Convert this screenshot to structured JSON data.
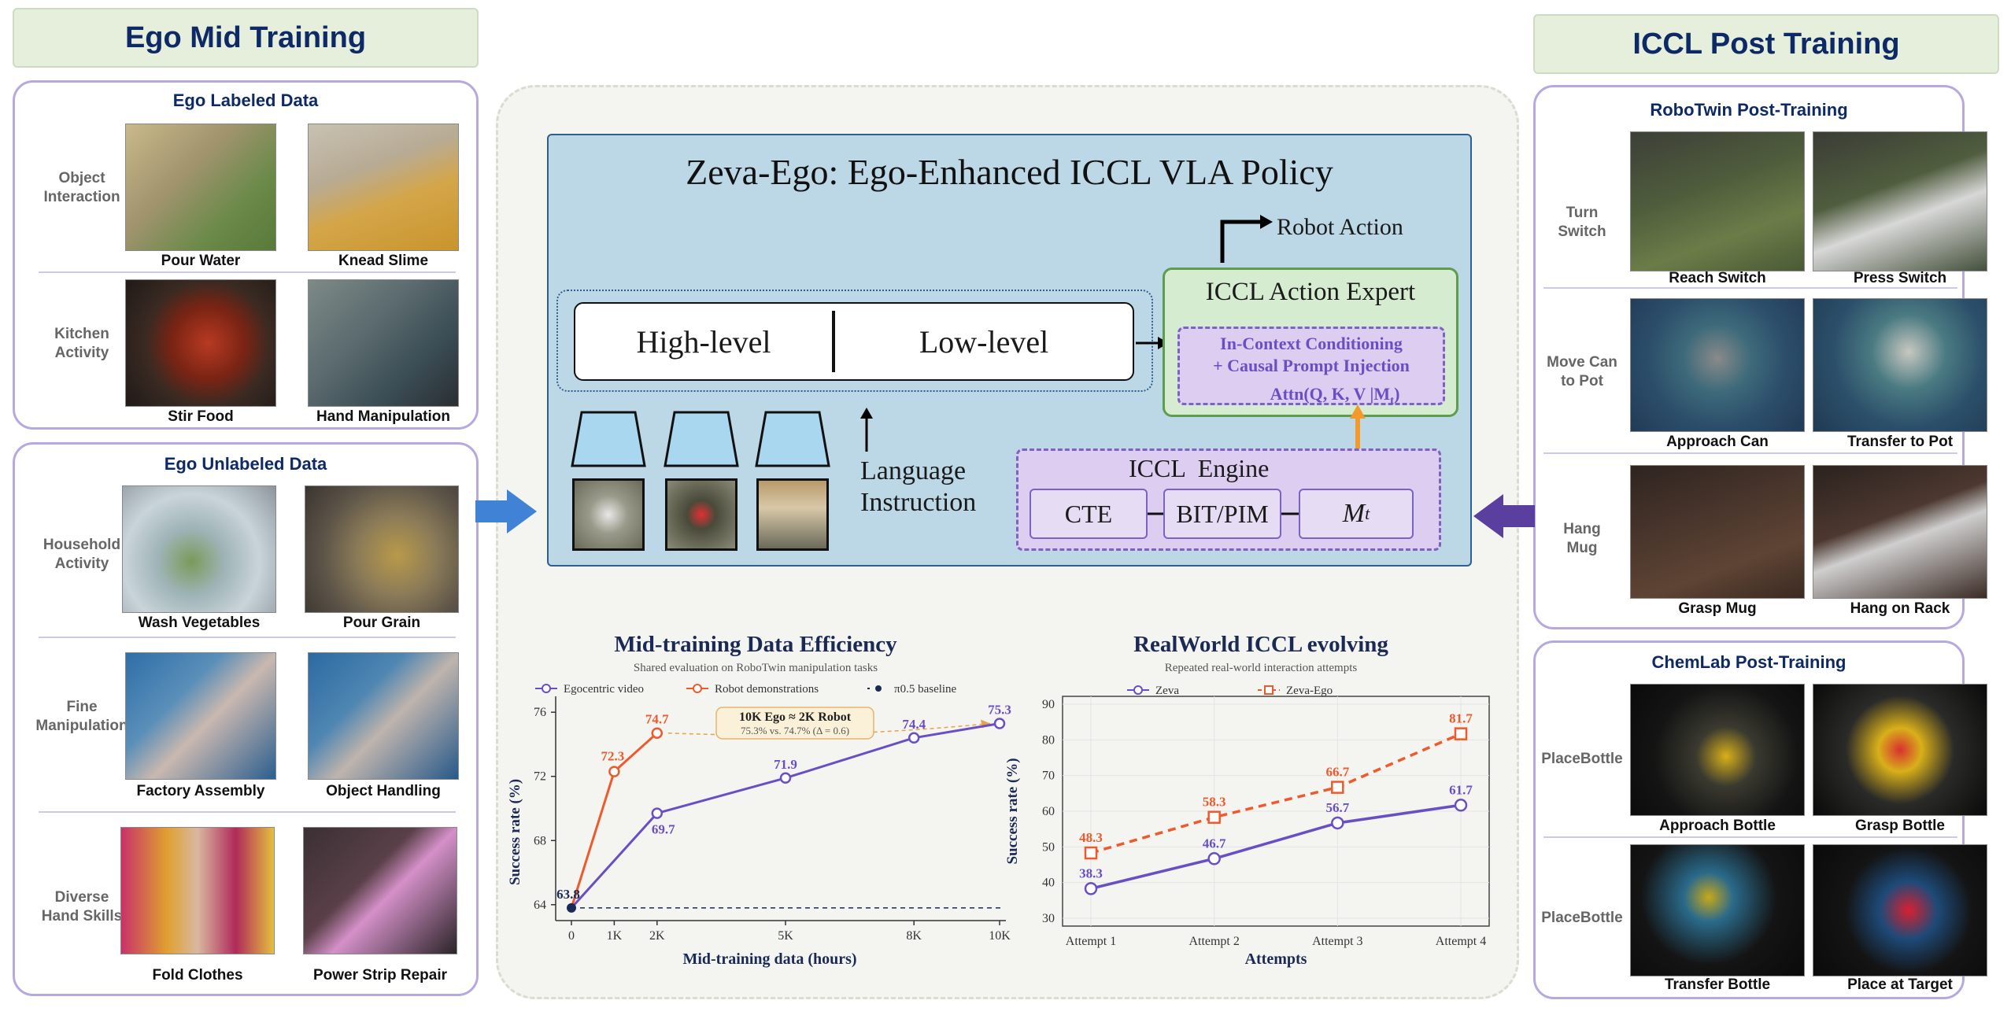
{
  "left": {
    "header": "Ego Mid Training",
    "labeled": {
      "title": "Ego Labeled Data",
      "rows": [
        {
          "label": "Object\nInteraction",
          "captions": [
            "Pour Water",
            "Knead Slime"
          ]
        },
        {
          "label": "Kitchen\nActivity",
          "captions": [
            "Stir Food",
            "Hand Manipulation"
          ]
        }
      ]
    },
    "unlabeled": {
      "title": "Ego Unlabeled Data",
      "rows": [
        {
          "label": "Household\nActivity",
          "captions": [
            "Wash Vegetables",
            "Pour Grain"
          ]
        },
        {
          "label": "Fine\nManipulation",
          "captions": [
            "Factory Assembly",
            "Object Handling"
          ]
        },
        {
          "label": "Diverse\nHand Skills",
          "captions": [
            "Fold Clothes",
            "Power Strip Repair"
          ]
        }
      ]
    }
  },
  "right": {
    "header": "ICCL Post Training",
    "robotwin": {
      "title": "RoboTwin Post-Training",
      "rows": [
        {
          "label": "Turn\nSwitch",
          "captions": [
            "Reach Switch",
            "Press Switch"
          ]
        },
        {
          "label": "Move Can\nto Pot",
          "captions": [
            "Approach Can",
            "Transfer to Pot"
          ]
        },
        {
          "label": "Hang\nMug",
          "captions": [
            "Grasp Mug",
            "Hang on Rack"
          ]
        }
      ]
    },
    "chemlab": {
      "title": "ChemLab Post-Training",
      "rows": [
        {
          "label": "PlaceBottle",
          "captions": [
            "Approach Bottle",
            "Grasp Bottle"
          ]
        },
        {
          "label": "PlaceBottle",
          "captions": [
            "Transfer Bottle",
            "Place at Target"
          ]
        }
      ]
    }
  },
  "policy": {
    "title": "Zeva-Ego: Ego-Enhanced ICCL VLA Policy",
    "robot_action": "Robot Action",
    "high_level": "High-level",
    "low_level": "Low-level",
    "language": "Language",
    "instruction": "Instruction",
    "expert_title": "ICCL Action Expert",
    "expert_line1": "In-Context Conditioning",
    "expert_line2": "+ Causal Prompt Injection",
    "expert_line3": "Attn(Q,  K,  V |M",
    "expert_sub": "t",
    "engine_title": "ICCL  Engine",
    "cte": "CTE",
    "bitpim": "BIT/PIM",
    "mt": "M",
    "mt_sub": "t"
  },
  "colors": {
    "purple": "#6a4fc4",
    "orange": "#ee5a2c",
    "navy": "#1b2a55",
    "blue_arrow": "#3f82d6",
    "purple_arrow": "#5a3f9e"
  },
  "chart_data": [
    {
      "type": "line",
      "title": "Mid-training Data Efficiency",
      "subtitle": "Shared evaluation on RoboTwin manipulation tasks",
      "xlabel": "Mid-training data (hours)",
      "ylabel": "Success rate (%)",
      "x_ticks": [
        "0",
        "1K",
        "2K",
        "5K",
        "8K",
        "10K"
      ],
      "y_ticks": [
        "64",
        "68",
        "72",
        "76"
      ],
      "xlim": [
        0,
        10000
      ],
      "ylim": [
        63.5,
        76.5
      ],
      "series": [
        {
          "name": "Egocentric video",
          "x": [
            0,
            2000,
            5000,
            8000,
            10000
          ],
          "values": [
            63.8,
            69.7,
            71.9,
            74.4,
            75.3
          ],
          "labels": [
            "63.8",
            "69.7",
            "71.9",
            "74.4",
            "75.3"
          ]
        },
        {
          "name": "Robot demonstrations",
          "x": [
            0,
            1000,
            2000
          ],
          "values": [
            63.8,
            72.3,
            74.7
          ],
          "labels": [
            "",
            "72.3",
            "74.7"
          ]
        },
        {
          "name": "π0.5 baseline",
          "x": [
            0,
            10000
          ],
          "values": [
            63.8,
            63.8
          ]
        }
      ],
      "annotation": {
        "line1": "10K Ego ≈ 2K Robot",
        "line2": "75.3% vs. 74.7% (Δ = 0.6)"
      },
      "grid": false,
      "legend": "top"
    },
    {
      "type": "line",
      "title": "RealWorld ICCL evolving",
      "subtitle": "Repeated real-world interaction attempts",
      "xlabel": "Attempts",
      "ylabel": "Success rate (%)",
      "categories": [
        "Attempt 1",
        "Attempt 2",
        "Attempt 3",
        "Attempt 4"
      ],
      "y_ticks": [
        "30",
        "40",
        "50",
        "60",
        "70",
        "80",
        "90"
      ],
      "ylim": [
        30,
        90
      ],
      "series": [
        {
          "name": "Zeva",
          "values": [
            38.3,
            46.7,
            56.7,
            61.7
          ],
          "labels": [
            "38.3",
            "46.7",
            "56.7",
            "61.7"
          ]
        },
        {
          "name": "Zeva-Ego",
          "values": [
            48.3,
            58.3,
            66.7,
            81.7
          ],
          "labels": [
            "48.3",
            "58.3",
            "66.7",
            "81.7"
          ]
        }
      ],
      "grid": true,
      "legend": "top"
    }
  ]
}
